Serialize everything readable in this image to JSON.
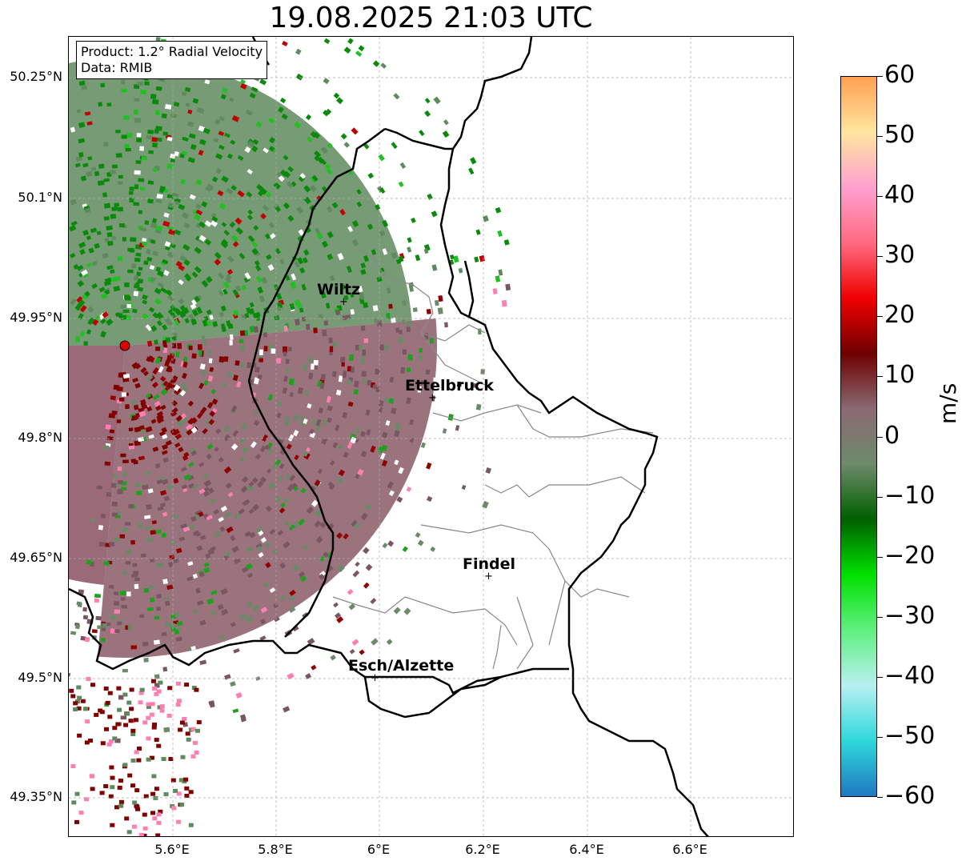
{
  "title": "19.08.2025 21:03 UTC",
  "info": {
    "product": "Product: 1.2° Radial Velocity",
    "data_source": "Data: RMIB"
  },
  "axes": {
    "lat_ticks": [
      "50.25°N",
      "50.1°N",
      "49.95°N",
      "49.8°N",
      "49.65°N",
      "49.5°N",
      "49.35°N"
    ],
    "lon_ticks": [
      "5.6°E",
      "5.8°E",
      "6°E",
      "6.2°E",
      "6.4°E",
      "6.6°E"
    ]
  },
  "cities": [
    {
      "name": "Wiltz"
    },
    {
      "name": "Ettelbruck"
    },
    {
      "name": "Findel"
    },
    {
      "name": "Esch/Alzette"
    }
  ],
  "colorbar": {
    "label": "m/s",
    "ticks": [
      "60",
      "50",
      "40",
      "30",
      "20",
      "10",
      "0",
      "−10",
      "−20",
      "−30",
      "−40",
      "−50",
      "−60"
    ],
    "range": [
      -60,
      60
    ],
    "stops": [
      "#1f78c0",
      "#2ed8dc",
      "#b8f0f0",
      "#60f080",
      "#00e000",
      "#006000",
      "#6e8a6a",
      "#8a6a74",
      "#700000",
      "#f00000",
      "#ff6a80",
      "#ffa0d0",
      "#ffe6a0",
      "#ffa050"
    ]
  },
  "colors": {
    "inbound_green": "#0a8a0a",
    "near_zero_green": "#6a8a68",
    "near_zero_red": "#8a6070",
    "outbound_red": "#800000",
    "radar_marker": "#e00000"
  }
}
